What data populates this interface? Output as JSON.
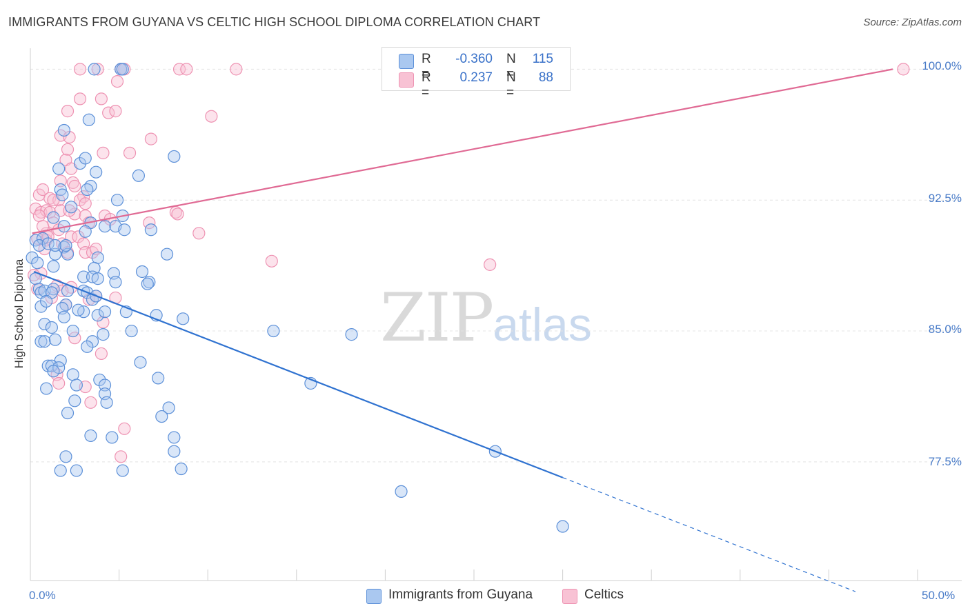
{
  "header": {
    "title": "IMMIGRANTS FROM GUYANA VS CELTIC HIGH SCHOOL DIPLOMA CORRELATION CHART",
    "source": "Source: ZipAtlas.com"
  },
  "watermark": {
    "zip": "ZIP",
    "atlas": "atlas"
  },
  "legend": {
    "rows": [
      {
        "r_label": "R =",
        "r_value": "-0.360",
        "n_label": "N =",
        "n_value": "115",
        "color": "#6a9fe0"
      },
      {
        "r_label": "R =",
        "r_value": "0.237",
        "n_label": "N =",
        "n_value": "88",
        "color": "#f08cb0"
      }
    ]
  },
  "bottom_legend": {
    "series1": "Immigrants from Guyana",
    "series2": "Celtics"
  },
  "colors": {
    "blue_fill": "#aac8f0",
    "blue_stroke": "#5b8fd8",
    "blue_line": "#2f72d0",
    "pink_fill": "#f8c2d4",
    "pink_stroke": "#ee92b2",
    "pink_line": "#e06a94",
    "tick_text": "#4a7cc8",
    "grid": "#e4e4e4"
  },
  "chart_data": {
    "type": "scatter",
    "title": "IMMIGRANTS FROM GUYANA VS CELTIC HIGH SCHOOL DIPLOMA CORRELATION CHART",
    "xlabel": "",
    "ylabel": "High School Diploma",
    "xlim": [
      0,
      50
    ],
    "ylim": [
      70.7,
      101.2
    ],
    "x_tick_labels": [
      "0.0%",
      "50.0%"
    ],
    "y_ticks": [
      77.5,
      85.0,
      92.5,
      100.0
    ],
    "y_tick_labels": [
      "77.5%",
      "85.0%",
      "92.5%",
      "100.0%"
    ],
    "grid": true,
    "legend_position": "top-center",
    "series": [
      {
        "name": "Immigrants from Guyana",
        "R": -0.36,
        "N": 115,
        "trend": {
          "x0": 0.2,
          "y0": 88.4,
          "x1": 30.0,
          "y1": 76.6,
          "dashed_to_x": 46.5
        },
        "points": [
          [
            3.6,
            100
          ],
          [
            5.1,
            100
          ],
          [
            5.2,
            100
          ],
          [
            3.3,
            97.1
          ],
          [
            1.9,
            96.5
          ],
          [
            8.1,
            95.0
          ],
          [
            2.8,
            94.6
          ],
          [
            3.1,
            94.9
          ],
          [
            3.7,
            94.1
          ],
          [
            1.6,
            94.3
          ],
          [
            6.1,
            93.9
          ],
          [
            3.4,
            93.3
          ],
          [
            1.7,
            93.1
          ],
          [
            3.2,
            93.1
          ],
          [
            1.8,
            92.8
          ],
          [
            4.9,
            92.5
          ],
          [
            0.3,
            90.2
          ],
          [
            0.7,
            90.3
          ],
          [
            1.3,
            91.5
          ],
          [
            1.9,
            91.0
          ],
          [
            2.3,
            92.1
          ],
          [
            3.4,
            91.2
          ],
          [
            4.2,
            91.0
          ],
          [
            4.8,
            91.0
          ],
          [
            5.2,
            91.6
          ],
          [
            5.3,
            90.8
          ],
          [
            6.8,
            90.8
          ],
          [
            0.5,
            89.9
          ],
          [
            1.0,
            90.0
          ],
          [
            1.4,
            89.4
          ],
          [
            1.9,
            89.8
          ],
          [
            2.1,
            89.4
          ],
          [
            3.1,
            90.7
          ],
          [
            3.8,
            89.2
          ],
          [
            0.1,
            89.2
          ],
          [
            0.4,
            88.9
          ],
          [
            7.7,
            89.4
          ],
          [
            0.3,
            88.0
          ],
          [
            1.3,
            88.7
          ],
          [
            3.0,
            88.1
          ],
          [
            3.6,
            88.6
          ],
          [
            3.5,
            88.1
          ],
          [
            3.8,
            88.0
          ],
          [
            4.7,
            88.3
          ],
          [
            4.8,
            87.8
          ],
          [
            6.3,
            88.4
          ],
          [
            6.7,
            87.8
          ],
          [
            0.5,
            87.4
          ],
          [
            0.6,
            87.2
          ],
          [
            0.8,
            87.3
          ],
          [
            1.3,
            87.4
          ],
          [
            1.2,
            87.2
          ],
          [
            2.1,
            87.3
          ],
          [
            3.0,
            87.3
          ],
          [
            3.2,
            87.2
          ],
          [
            0.6,
            86.4
          ],
          [
            2.0,
            86.5
          ],
          [
            3.5,
            86.8
          ],
          [
            0.9,
            86.7
          ],
          [
            1.8,
            86.3
          ],
          [
            3.0,
            86.1
          ],
          [
            3.8,
            85.9
          ],
          [
            4.2,
            86.1
          ],
          [
            5.4,
            86.1
          ],
          [
            7.1,
            85.9
          ],
          [
            0.8,
            85.4
          ],
          [
            1.2,
            85.2
          ],
          [
            1.9,
            85.8
          ],
          [
            8.6,
            85.7
          ],
          [
            2.4,
            85.0
          ],
          [
            4.1,
            84.8
          ],
          [
            5.7,
            85.0
          ],
          [
            13.7,
            85.0
          ],
          [
            18.1,
            84.8
          ],
          [
            0.6,
            84.4
          ],
          [
            0.8,
            84.4
          ],
          [
            1.4,
            84.5
          ],
          [
            3.5,
            84.4
          ],
          [
            3.2,
            84.1
          ],
          [
            1.7,
            83.3
          ],
          [
            6.2,
            83.2
          ],
          [
            1.0,
            83.0
          ],
          [
            1.2,
            83.0
          ],
          [
            1.6,
            82.9
          ],
          [
            1.3,
            82.7
          ],
          [
            2.4,
            82.5
          ],
          [
            7.2,
            82.3
          ],
          [
            3.9,
            82.2
          ],
          [
            4.2,
            81.9
          ],
          [
            0.9,
            81.7
          ],
          [
            2.6,
            81.9
          ],
          [
            4.2,
            81.4
          ],
          [
            15.8,
            82.0
          ],
          [
            2.5,
            81.0
          ],
          [
            4.3,
            80.9
          ],
          [
            7.8,
            80.6
          ],
          [
            2.1,
            80.3
          ],
          [
            7.4,
            80.1
          ],
          [
            3.4,
            79.0
          ],
          [
            4.6,
            78.9
          ],
          [
            8.1,
            78.9
          ],
          [
            8.1,
            78.1
          ],
          [
            26.2,
            78.1
          ],
          [
            2.0,
            77.8
          ],
          [
            1.7,
            77.0
          ],
          [
            2.6,
            77.0
          ],
          [
            5.2,
            77.0
          ],
          [
            8.5,
            77.1
          ],
          [
            20.9,
            75.8
          ],
          [
            30.0,
            73.8
          ],
          [
            1.4,
            89.9
          ],
          [
            2.0,
            89.9
          ],
          [
            3.7,
            87.0
          ],
          [
            2.7,
            86.2
          ],
          [
            6.6,
            87.7
          ]
        ]
      },
      {
        "name": "Celtics",
        "R": 0.237,
        "N": 88,
        "trend": {
          "x0": 0.1,
          "y0": 90.6,
          "x1": 48.6,
          "y1": 100.0
        },
        "points": [
          [
            2.8,
            100
          ],
          [
            3.8,
            100
          ],
          [
            5.1,
            100
          ],
          [
            5.3,
            100
          ],
          [
            8.4,
            100
          ],
          [
            8.8,
            100
          ],
          [
            11.6,
            100
          ],
          [
            49.2,
            100
          ],
          [
            4.9,
            99.3
          ],
          [
            2.8,
            98.3
          ],
          [
            4.0,
            98.3
          ],
          [
            2.1,
            97.6
          ],
          [
            4.4,
            97.5
          ],
          [
            4.8,
            97.6
          ],
          [
            10.2,
            97.3
          ],
          [
            1.7,
            96.2
          ],
          [
            2.2,
            96.1
          ],
          [
            6.8,
            96.0
          ],
          [
            2.1,
            95.4
          ],
          [
            4.1,
            95.2
          ],
          [
            5.6,
            95.2
          ],
          [
            2.0,
            94.8
          ],
          [
            2.3,
            94.3
          ],
          [
            1.7,
            93.6
          ],
          [
            2.4,
            93.5
          ],
          [
            2.5,
            93.3
          ],
          [
            3.0,
            92.7
          ],
          [
            0.5,
            92.8
          ],
          [
            0.7,
            93.1
          ],
          [
            1.1,
            92.6
          ],
          [
            1.6,
            92.5
          ],
          [
            2.8,
            92.5
          ],
          [
            3.1,
            92.3
          ],
          [
            0.3,
            92.0
          ],
          [
            0.6,
            91.8
          ],
          [
            0.9,
            91.9
          ],
          [
            1.1,
            91.8
          ],
          [
            1.7,
            91.9
          ],
          [
            2.5,
            91.7
          ],
          [
            3.1,
            91.6
          ],
          [
            3.3,
            91.2
          ],
          [
            4.2,
            91.6
          ],
          [
            4.5,
            91.4
          ],
          [
            8.2,
            91.8
          ],
          [
            8.3,
            91.7
          ],
          [
            6.7,
            91.2
          ],
          [
            0.5,
            91.6
          ],
          [
            1.3,
            91.2
          ],
          [
            0.9,
            90.6
          ],
          [
            1.6,
            90.8
          ],
          [
            2.3,
            90.4
          ],
          [
            0.4,
            90.3
          ],
          [
            0.9,
            90.2
          ],
          [
            2.7,
            90.4
          ],
          [
            3.0,
            90.0
          ],
          [
            9.5,
            90.6
          ],
          [
            1.8,
            90.0
          ],
          [
            0.8,
            89.7
          ],
          [
            2.1,
            89.5
          ],
          [
            3.1,
            89.5
          ],
          [
            3.5,
            89.5
          ],
          [
            3.7,
            89.7
          ],
          [
            13.6,
            89.0
          ],
          [
            25.9,
            88.8
          ],
          [
            0.6,
            88.3
          ],
          [
            1.5,
            87.6
          ],
          [
            2.3,
            87.5
          ],
          [
            1.8,
            87.3
          ],
          [
            1.2,
            86.9
          ],
          [
            3.3,
            86.8
          ],
          [
            4.8,
            86.9
          ],
          [
            2.0,
            86.5
          ],
          [
            4.1,
            85.5
          ],
          [
            2.5,
            84.6
          ],
          [
            4.0,
            83.7
          ],
          [
            1.5,
            82.5
          ],
          [
            1.6,
            82.0
          ],
          [
            3.1,
            81.8
          ],
          [
            3.4,
            80.9
          ],
          [
            5.3,
            79.4
          ],
          [
            5.1,
            77.8
          ],
          [
            0.2,
            88.2
          ],
          [
            0.4,
            87.4
          ],
          [
            0.7,
            91.0
          ],
          [
            1.0,
            90.4
          ],
          [
            2.2,
            91.9
          ],
          [
            3.7,
            87.0
          ],
          [
            1.3,
            92.5
          ]
        ]
      }
    ]
  }
}
